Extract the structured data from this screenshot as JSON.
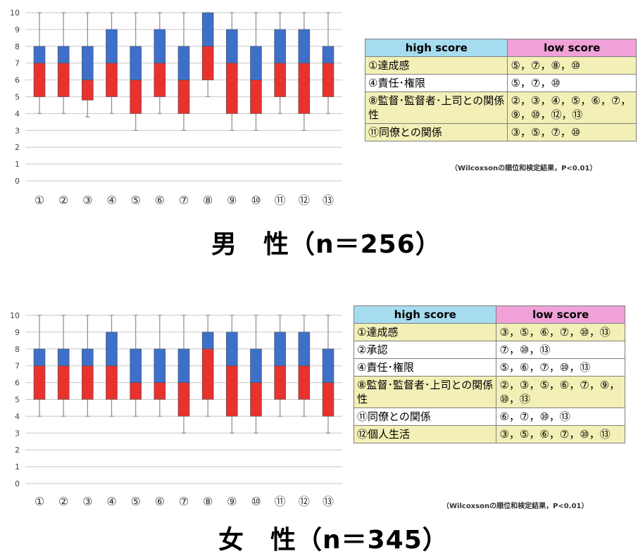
{
  "chart_data": [
    {
      "type": "box",
      "group_label": "男　性（n＝256）",
      "categories": [
        "①",
        "②",
        "③",
        "④",
        "⑤",
        "⑥",
        "⑦",
        "⑧",
        "⑨",
        "⑩",
        "⑪",
        "⑫",
        "⑬"
      ],
      "ylim": [
        0,
        10
      ],
      "yticks": [
        0,
        1,
        2,
        3,
        4,
        5,
        6,
        7,
        8,
        9,
        10
      ],
      "boxes": [
        {
          "min": 4,
          "q1": 5,
          "median": 7,
          "q3": 8,
          "max": 10
        },
        {
          "min": 4,
          "q1": 5,
          "median": 7,
          "q3": 8,
          "max": 10
        },
        {
          "min": 3.8,
          "q1": 4.8,
          "median": 6,
          "q3": 8,
          "max": 10
        },
        {
          "min": 4,
          "q1": 5,
          "median": 7,
          "q3": 9,
          "max": 10
        },
        {
          "min": 3,
          "q1": 4,
          "median": 6,
          "q3": 8,
          "max": 10
        },
        {
          "min": 4,
          "q1": 5,
          "median": 7,
          "q3": 9,
          "max": 10
        },
        {
          "min": 3,
          "q1": 4,
          "median": 6,
          "q3": 8,
          "max": 10
        },
        {
          "min": 5,
          "q1": 6,
          "median": 8,
          "q3": 10,
          "max": 10
        },
        {
          "min": 3,
          "q1": 4,
          "median": 7,
          "q3": 9,
          "max": 10
        },
        {
          "min": 3,
          "q1": 4,
          "median": 6,
          "q3": 8,
          "max": 10
        },
        {
          "min": 4,
          "q1": 5,
          "median": 7,
          "q3": 9,
          "max": 10
        },
        {
          "min": 3,
          "q1": 4,
          "median": 7,
          "q3": 9,
          "max": 10
        },
        {
          "min": 4,
          "q1": 5,
          "median": 7,
          "q3": 8,
          "max": 10
        }
      ],
      "colors": {
        "lower_box": "#e8322e",
        "upper_box": "#3e6fc9",
        "grid": "#c8c8c8"
      },
      "grid": true
    },
    {
      "type": "box",
      "group_label": "女　性（n＝345）",
      "categories": [
        "①",
        "②",
        "③",
        "④",
        "⑤",
        "⑥",
        "⑦",
        "⑧",
        "⑨",
        "⑩",
        "⑪",
        "⑫",
        "⑬"
      ],
      "ylim": [
        0,
        10
      ],
      "yticks": [
        0,
        1,
        2,
        3,
        4,
        5,
        6,
        7,
        8,
        9,
        10
      ],
      "boxes": [
        {
          "min": 4,
          "q1": 5,
          "median": 7,
          "q3": 8,
          "max": 10
        },
        {
          "min": 4,
          "q1": 5,
          "median": 7,
          "q3": 8,
          "max": 10
        },
        {
          "min": 4,
          "q1": 5,
          "median": 7,
          "q3": 8,
          "max": 10
        },
        {
          "min": 4,
          "q1": 5,
          "median": 7,
          "q3": 9,
          "max": 10
        },
        {
          "min": 4,
          "q1": 5,
          "median": 6,
          "q3": 8,
          "max": 10
        },
        {
          "min": 4,
          "q1": 5,
          "median": 6,
          "q3": 8,
          "max": 10
        },
        {
          "min": 3,
          "q1": 4,
          "median": 6,
          "q3": 8,
          "max": 10
        },
        {
          "min": 4,
          "q1": 5,
          "median": 8,
          "q3": 9,
          "max": 10
        },
        {
          "min": 3,
          "q1": 4,
          "median": 7,
          "q3": 9,
          "max": 10
        },
        {
          "min": 3,
          "q1": 4,
          "median": 6,
          "q3": 8,
          "max": 10
        },
        {
          "min": 4,
          "q1": 5,
          "median": 7,
          "q3": 9,
          "max": 10
        },
        {
          "min": 4,
          "q1": 5,
          "median": 7,
          "q3": 9,
          "max": 10
        },
        {
          "min": 3,
          "q1": 4,
          "median": 6,
          "q3": 8,
          "max": 10
        }
      ],
      "colors": {
        "lower_box": "#e8322e",
        "upper_box": "#3e6fc9",
        "grid": "#c8c8c8"
      },
      "grid": true
    }
  ],
  "male": {
    "title": "男　性（n＝256）",
    "table": {
      "header_high": "high score",
      "header_low": "low score",
      "rows": [
        {
          "high": "①達成感",
          "low": "⑤，⑦，⑧，⑩"
        },
        {
          "high": "④責任･権限",
          "low": "⑤，⑦，⑩"
        },
        {
          "high": "⑧監督･監督者･上司との関係性",
          "low": "②，③，④，⑤，⑥，⑦，⑨，⑩，⑫，⑬"
        },
        {
          "high": "⑪同僚との関係",
          "low": "③，⑤，⑦，⑩"
        }
      ]
    },
    "note": "（Wilcoxsonの順位和検定結果，P<0.01）"
  },
  "female": {
    "title": "女　性（n＝345）",
    "table": {
      "header_high": "high score",
      "header_low": "low score",
      "rows": [
        {
          "high": "①達成感",
          "low": "③，⑤，⑥，⑦，⑩，⑬"
        },
        {
          "high": "②承認",
          "low": "⑦，⑩，⑬"
        },
        {
          "high": "④責任･権限",
          "low": "⑤，⑥，⑦，⑩，⑬"
        },
        {
          "high": "⑧監督･監督者･上司との関係性",
          "low": "②，③，⑤，⑥，⑦，⑨，⑩，⑬"
        },
        {
          "high": "⑪同僚との関係",
          "low": "⑥，⑦，⑩，⑬"
        },
        {
          "high": "⑫個人生活",
          "low": "③，⑤，⑥，⑦，⑩，⑬"
        }
      ]
    },
    "note": "（Wilcoxsonの順位和検定結果，P<0.01）"
  },
  "colors": {
    "high_header": "#a6dcef",
    "low_header": "#f0a2d8",
    "highlight_row": "#f2f0b6"
  }
}
